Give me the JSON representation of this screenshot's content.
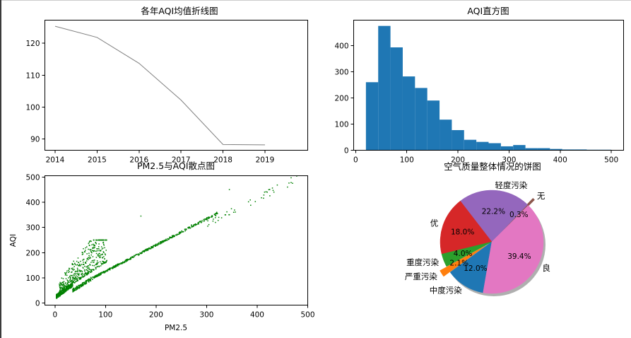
{
  "chart_data": [
    {
      "type": "line",
      "title": "各年AQI均值折线图",
      "x": [
        "2014",
        "2015",
        "2016",
        "2017",
        "2018",
        "2019"
      ],
      "values": [
        125.3,
        121.8,
        113.7,
        102.2,
        88.3,
        88.2
      ],
      "yticks": [
        90,
        100,
        110,
        120
      ],
      "ylim": [
        86.5,
        127.2
      ],
      "line_color": "#808080"
    },
    {
      "type": "bar",
      "title": "AQI直方图",
      "bin_edges": [
        20,
        44,
        68,
        92,
        116,
        140,
        164,
        188,
        212,
        236,
        260,
        284,
        308,
        332,
        356,
        380,
        404,
        428,
        452,
        476,
        500
      ],
      "values": [
        260,
        475,
        393,
        282,
        238,
        190,
        117,
        77,
        40,
        32,
        27,
        15,
        20,
        8,
        8,
        5,
        3,
        3,
        2,
        2
      ],
      "xticks": [
        0,
        100,
        200,
        300,
        400,
        500
      ],
      "yticks": [
        0,
        100,
        200,
        300,
        400
      ],
      "xlim": [
        -4,
        524
      ],
      "ylim": [
        0,
        497
      ],
      "color": "#1f77b4"
    },
    {
      "type": "scatter",
      "title": "PM2.5与AQI散点图",
      "xlabel": "PM2.5",
      "ylabel": "AQI",
      "xticks": [
        0,
        100,
        200,
        300,
        400,
        500
      ],
      "yticks": [
        0,
        100,
        200,
        300,
        400,
        500
      ],
      "xlim": [
        -20,
        500
      ],
      "ylim": [
        -8,
        505
      ],
      "color": "#008000",
      "trend": [
        [
          5,
          25
        ],
        [
          15,
          45
        ],
        [
          35,
          75
        ],
        [
          60,
          110
        ],
        [
          100,
          150
        ],
        [
          150,
          200
        ],
        [
          200,
          250
        ],
        [
          250,
          300
        ],
        [
          300,
          350
        ],
        [
          350,
          400
        ],
        [
          400,
          430
        ],
        [
          450,
          465
        ],
        [
          480,
          480
        ]
      ],
      "cloud_center": [
        [
          20,
          60
        ],
        [
          30,
          80
        ],
        [
          40,
          100
        ],
        [
          50,
          120
        ],
        [
          60,
          140
        ],
        [
          80,
          160
        ]
      ],
      "outliers": [
        [
          170,
          345
        ],
        [
          345,
          450
        ],
        [
          460,
          460
        ],
        [
          470,
          475
        ],
        [
          420,
          440
        ],
        [
          320,
          360
        ],
        [
          270,
          310
        ]
      ]
    },
    {
      "type": "pie",
      "title": "空气质量整体情况的饼图",
      "slices": [
        {
          "label": "无",
          "pct": "0.3%",
          "value": 0.3,
          "color": "#8c564b",
          "explode": true
        },
        {
          "label": "轻度污染",
          "pct": "22.2%",
          "value": 22.2,
          "color": "#9467bd",
          "explode": false
        },
        {
          "label": "优",
          "pct": "18.0%",
          "value": 18.0,
          "color": "#d62728",
          "explode": false
        },
        {
          "label": "重度污染",
          "pct": "4.0%",
          "value": 4.0,
          "color": "#2ca02c",
          "explode": false
        },
        {
          "label": "严重污染",
          "pct": "2.1%",
          "value": 2.1,
          "color": "#ff7f0e",
          "explode": true
        },
        {
          "label": "中度污染",
          "pct": "12.0%",
          "value": 12.0,
          "color": "#1f77b4",
          "explode": false
        },
        {
          "label": "良",
          "pct": "39.4%",
          "value": 39.4,
          "color": "#e377c2",
          "explode": false
        }
      ],
      "shadow": true
    }
  ]
}
